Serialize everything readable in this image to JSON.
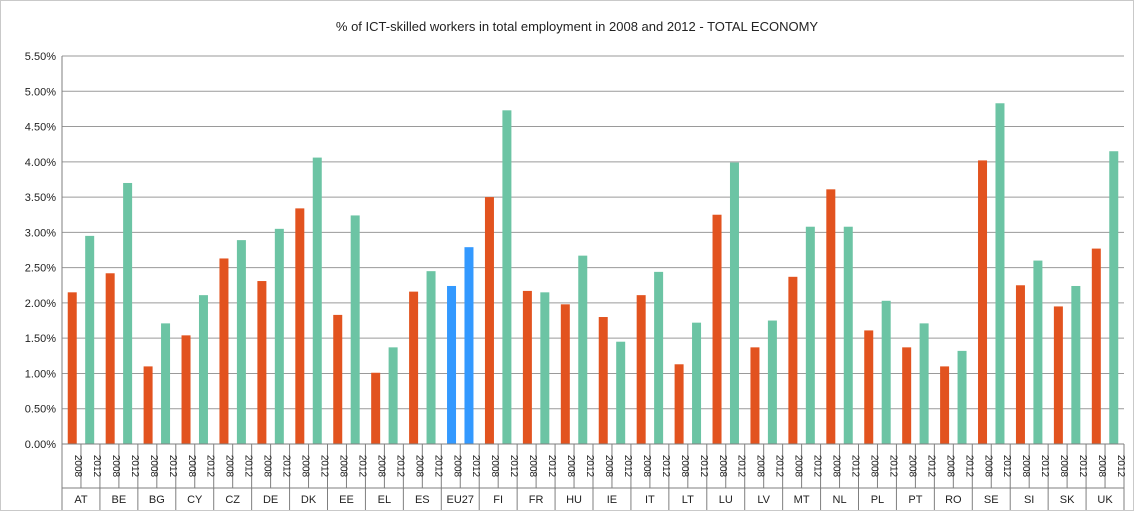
{
  "chart_data": {
    "type": "bar",
    "title": "% of ICT-skilled workers in total employment in 2008 and 2012 - TOTAL ECONOMY",
    "ylim": [
      0,
      0.055
    ],
    "y_ticks": [
      "0.00%",
      "0.50%",
      "1.00%",
      "1.50%",
      "2.00%",
      "2.50%",
      "3.00%",
      "3.50%",
      "4.00%",
      "4.50%",
      "5.00%",
      "5.50%"
    ],
    "grid": true,
    "years": [
      "2008",
      "2012"
    ],
    "colors": {
      "y2008": "#E2531F",
      "y2012": "#6CC4A4",
      "eu2008": "#3399FF",
      "eu2012": "#3399FF",
      "grid": "#9a9a9a",
      "axis": "#7f7f7f"
    },
    "categories": [
      "AT",
      "BE",
      "BG",
      "CY",
      "CZ",
      "DE",
      "DK",
      "EE",
      "EL",
      "ES",
      "EU27",
      "FI",
      "FR",
      "HU",
      "IE",
      "IT",
      "LT",
      "LU",
      "LV",
      "MT",
      "NL",
      "PL",
      "PT",
      "RO",
      "SE",
      "SI",
      "SK",
      "UK"
    ],
    "series": [
      {
        "values": [
          2.15,
          2.42,
          1.1,
          1.54,
          2.63,
          2.31,
          3.34,
          1.83,
          1.01,
          2.16,
          2.24,
          3.5,
          2.17,
          1.98,
          1.8,
          2.11,
          1.13,
          3.25,
          1.37,
          2.37,
          3.61,
          1.61,
          1.37,
          1.1,
          4.02,
          2.25,
          1.95,
          2.77
        ]
      },
      {
        "values": [
          2.95,
          3.7,
          1.71,
          2.11,
          2.89,
          3.05,
          4.06,
          3.24,
          1.37,
          2.45,
          2.79,
          4.73,
          2.15,
          2.67,
          1.45,
          2.44,
          1.72,
          3.99,
          1.75,
          3.08,
          3.08,
          2.03,
          1.71,
          1.32,
          4.83,
          2.6,
          2.24,
          4.15
        ]
      }
    ]
  }
}
